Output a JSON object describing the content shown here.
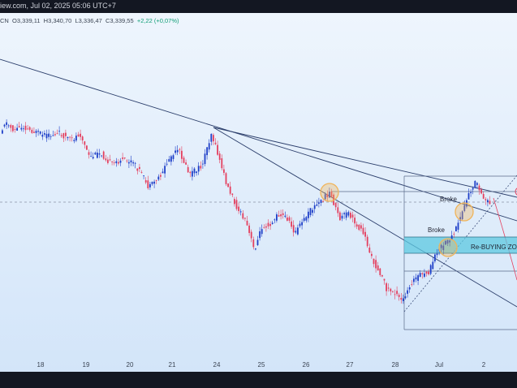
{
  "topbar": {
    "text": "iew.com, Jul 02, 2025 05:06 UTC+7"
  },
  "ohlc": {
    "prefix": "CN",
    "open": "O3,339,11",
    "high": "H3,340,70",
    "low": "L3,336,47",
    "close": "C3,339,55",
    "change": "+2,22 (+0,07%)"
  },
  "chart": {
    "annotations": {
      "broke_upper": "Broke",
      "broke_lower": "Broke",
      "zone_label": "Re-BUYING ZON"
    },
    "colors": {
      "bull": "#1e3fc8",
      "bear": "#e4405f",
      "zone": "#5cc8e0",
      "circle": "#f0b45a"
    }
  },
  "x_axis_labels": [
    "18",
    "19",
    "20",
    "21",
    "24",
    "25",
    "26",
    "27",
    "28",
    "Jul",
    "2"
  ],
  "chart_data": {
    "type": "candlestick",
    "x_ticks": [
      "18",
      "19",
      "20",
      "21",
      "24",
      "25",
      "26",
      "27",
      "28",
      "Jul",
      "2"
    ],
    "last_bar": {
      "open": 3339.11,
      "high": 3340.7,
      "low": 3336.47,
      "close": 3339.55,
      "change": 2.22,
      "change_pct": 0.07
    }
  }
}
